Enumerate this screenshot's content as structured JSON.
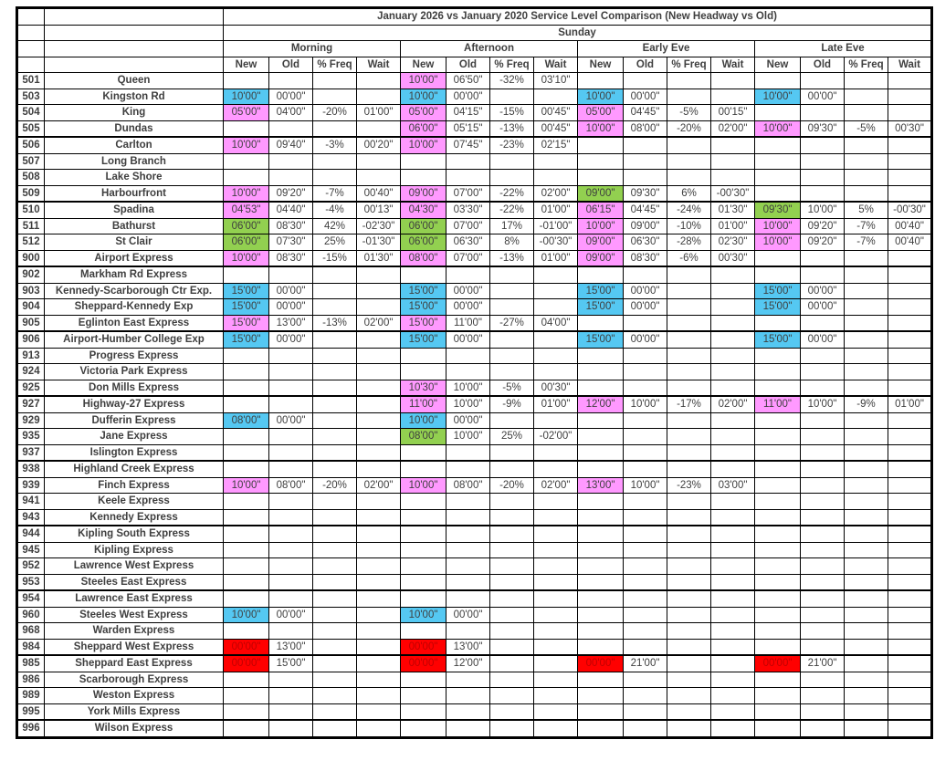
{
  "table": {
    "title": "January 2026 vs January 2020 Service Level Comparison (New Headway vs Old)",
    "day": "Sunday",
    "periods": [
      "Morning",
      "Afternoon",
      "Early Eve",
      "Late Eve"
    ],
    "measure_columns": [
      "New",
      "Old",
      "% Freq",
      "Wait"
    ],
    "highlight_colors": {
      "p": "#FF99FF",
      "c": "#55C8F2",
      "g": "#92D050",
      "r": "#FF0000",
      "r_text": "#C00000"
    },
    "rows": [
      {
        "num": "501",
        "name": "Queen",
        "cells": [
          "",
          "",
          "",
          "",
          "10'00\"|p",
          "06'50\"",
          "-32%",
          "03'10\"",
          "",
          "",
          "",
          "",
          "",
          "",
          "",
          ""
        ]
      },
      {
        "num": "503",
        "name": "Kingston Rd",
        "cells": [
          "10'00\"|c",
          "00'00\"",
          "",
          "",
          "10'00\"|c",
          "00'00\"",
          "",
          "",
          "10'00\"|c",
          "00'00\"",
          "",
          "",
          "10'00\"|c",
          "00'00\"",
          "",
          ""
        ]
      },
      {
        "num": "504",
        "name": "King",
        "cells": [
          "05'00\"|p",
          "04'00\"",
          "-20%",
          "01'00\"",
          "05'00\"|p",
          "04'15\"",
          "-15%",
          "00'45\"",
          "05'00\"|p",
          "04'45\"",
          "-5%",
          "00'15\"",
          "",
          "",
          "",
          ""
        ]
      },
      {
        "num": "505",
        "name": "Dundas",
        "cells": [
          "",
          "",
          "",
          "",
          "06'00\"|p",
          "05'15\"",
          "-13%",
          "00'45\"",
          "10'00\"|p",
          "08'00\"",
          "-20%",
          "02'00\"",
          "10'00\"|p",
          "09'30\"",
          "-5%",
          "00'30\""
        ]
      },
      {
        "num": "506",
        "name": "Carlton",
        "cells": [
          "10'00\"|p",
          "09'40\"",
          "-3%",
          "00'20\"",
          "10'00\"|p",
          "07'45\"",
          "-23%",
          "02'15\"",
          "",
          "",
          "",
          "",
          "",
          "",
          "",
          ""
        ]
      },
      {
        "num": "507",
        "name": "Long Branch",
        "cells": [
          "",
          "",
          "",
          "",
          "",
          "",
          "",
          "",
          "",
          "",
          "",
          "",
          "",
          "",
          "",
          ""
        ]
      },
      {
        "num": "508",
        "name": "Lake Shore",
        "cells": [
          "",
          "",
          "",
          "",
          "",
          "",
          "",
          "",
          "",
          "",
          "",
          "",
          "",
          "",
          "",
          ""
        ]
      },
      {
        "num": "509",
        "name": "Harbourfront",
        "cells": [
          "10'00\"|p",
          "09'20\"",
          "-7%",
          "00'40\"",
          "09'00\"|p",
          "07'00\"",
          "-22%",
          "02'00\"",
          "09'00\"|g",
          "09'30\"",
          "6%",
          "-00'30\"",
          "",
          "",
          "",
          ""
        ]
      },
      {
        "num": "510",
        "name": "Spadina",
        "cells": [
          "04'53\"|p",
          "04'40\"",
          "-4%",
          "00'13\"",
          "04'30\"|p",
          "03'30\"",
          "-22%",
          "01'00\"",
          "06'15\"|p",
          "04'45\"",
          "-24%",
          "01'30\"",
          "09'30\"|g",
          "10'00\"",
          "5%",
          "-00'30\""
        ]
      },
      {
        "num": "511",
        "name": "Bathurst",
        "cells": [
          "06'00\"|g",
          "08'30\"",
          "42%",
          "-02'30\"",
          "06'00\"|g",
          "07'00\"",
          "17%",
          "-01'00\"",
          "10'00\"|p",
          "09'00\"",
          "-10%",
          "01'00\"",
          "10'00\"|p",
          "09'20\"",
          "-7%",
          "00'40\""
        ]
      },
      {
        "num": "512",
        "name": "St Clair",
        "cells": [
          "06'00\"|g",
          "07'30\"",
          "25%",
          "-01'30\"",
          "06'00\"|g",
          "06'30\"",
          "8%",
          "-00'30\"",
          "09'00\"|p",
          "06'30\"",
          "-28%",
          "02'30\"",
          "10'00\"|p",
          "09'20\"",
          "-7%",
          "00'40\""
        ]
      },
      {
        "num": "900",
        "name": "Airport Express",
        "cells": [
          "10'00\"|p",
          "08'30\"",
          "-15%",
          "01'30\"",
          "08'00\"|p",
          "07'00\"",
          "-13%",
          "01'00\"",
          "09'00\"|p",
          "08'30\"",
          "-6%",
          "00'30\"",
          "",
          "",
          "",
          ""
        ]
      },
      {
        "num": "902",
        "name": "Markham Rd Express",
        "cells": [
          "",
          "",
          "",
          "",
          "",
          "",
          "",
          "",
          "",
          "",
          "",
          "",
          "",
          "",
          "",
          ""
        ]
      },
      {
        "num": "903",
        "name": "Kennedy-Scarborough Ctr Exp.",
        "cells": [
          "15'00\"|c",
          "00'00\"",
          "",
          "",
          "15'00\"|c",
          "00'00\"",
          "",
          "",
          "15'00\"|c",
          "00'00\"",
          "",
          "",
          "15'00\"|c",
          "00'00\"",
          "",
          ""
        ]
      },
      {
        "num": "904",
        "name": "Sheppard-Kennedy Exp",
        "cells": [
          "15'00\"|c",
          "00'00\"",
          "",
          "",
          "15'00\"|c",
          "00'00\"",
          "",
          "",
          "15'00\"|c",
          "00'00\"",
          "",
          "",
          "15'00\"|c",
          "00'00\"",
          "",
          ""
        ]
      },
      {
        "num": "905",
        "name": "Eglinton East Express",
        "cells": [
          "15'00\"|p",
          "13'00\"",
          "-13%",
          "02'00\"",
          "15'00\"|p",
          "11'00\"",
          "-27%",
          "04'00\"",
          "",
          "",
          "",
          "",
          "",
          "",
          "",
          ""
        ]
      },
      {
        "num": "906",
        "name": "Airport-Humber College Exp",
        "cells": [
          "15'00\"|c",
          "00'00\"",
          "",
          "",
          "15'00\"|c",
          "00'00\"",
          "",
          "",
          "15'00\"|c",
          "00'00\"",
          "",
          "",
          "15'00\"|c",
          "00'00\"",
          "",
          ""
        ]
      },
      {
        "num": "913",
        "name": "Progress Express",
        "cells": [
          "",
          "",
          "",
          "",
          "",
          "",
          "",
          "",
          "",
          "",
          "",
          "",
          "",
          "",
          "",
          ""
        ]
      },
      {
        "num": "924",
        "name": "Victoria Park Express",
        "cells": [
          "",
          "",
          "",
          "",
          "",
          "",
          "",
          "",
          "",
          "",
          "",
          "",
          "",
          "",
          "",
          ""
        ]
      },
      {
        "num": "925",
        "name": "Don Mills Express",
        "cells": [
          "",
          "",
          "",
          "",
          "10'30\"|p",
          "10'00\"",
          "-5%",
          "00'30\"",
          "",
          "",
          "",
          "",
          "",
          "",
          "",
          ""
        ]
      },
      {
        "num": "927",
        "name": "Highway-27 Express",
        "cells": [
          "",
          "",
          "",
          "",
          "11'00\"|p",
          "10'00\"",
          "-9%",
          "01'00\"",
          "12'00\"|p",
          "10'00\"",
          "-17%",
          "02'00\"",
          "11'00\"|p",
          "10'00\"",
          "-9%",
          "01'00\""
        ]
      },
      {
        "num": "929",
        "name": "Dufferin Express",
        "cells": [
          "08'00\"|c",
          "00'00\"",
          "",
          "",
          "10'00\"|c",
          "00'00\"",
          "",
          "",
          "",
          "",
          "",
          "",
          "",
          "",
          "",
          ""
        ]
      },
      {
        "num": "935",
        "name": "Jane Express",
        "cells": [
          "",
          "",
          "",
          "",
          "08'00\"|g",
          "10'00\"",
          "25%",
          "-02'00\"",
          "",
          "",
          "",
          "",
          "",
          "",
          "",
          ""
        ]
      },
      {
        "num": "937",
        "name": "Islington Express",
        "cells": [
          "",
          "",
          "",
          "",
          "",
          "",
          "",
          "",
          "",
          "",
          "",
          "",
          "",
          "",
          "",
          ""
        ]
      },
      {
        "num": "938",
        "name": "Highland Creek Express",
        "cells": [
          "",
          "",
          "",
          "",
          "",
          "",
          "",
          "",
          "",
          "",
          "",
          "",
          "",
          "",
          "",
          ""
        ]
      },
      {
        "num": "939",
        "name": "Finch Express",
        "cells": [
          "10'00\"|p",
          "08'00\"",
          "-20%",
          "02'00\"",
          "10'00\"|p",
          "08'00\"",
          "-20%",
          "02'00\"",
          "13'00\"|p",
          "10'00\"",
          "-23%",
          "03'00\"",
          "",
          "",
          "",
          ""
        ]
      },
      {
        "num": "941",
        "name": "Keele Express",
        "cells": [
          "",
          "",
          "",
          "",
          "",
          "",
          "",
          "",
          "",
          "",
          "",
          "",
          "",
          "",
          "",
          ""
        ]
      },
      {
        "num": "943",
        "name": "Kennedy Express",
        "cells": [
          "",
          "",
          "",
          "",
          "",
          "",
          "",
          "",
          "",
          "",
          "",
          "",
          "",
          "",
          "",
          ""
        ]
      },
      {
        "num": "944",
        "name": "Kipling South Express",
        "cells": [
          "",
          "",
          "",
          "",
          "",
          "",
          "",
          "",
          "",
          "",
          "",
          "",
          "",
          "",
          "",
          ""
        ]
      },
      {
        "num": "945",
        "name": "Kipling Express",
        "cells": [
          "",
          "",
          "",
          "",
          "",
          "",
          "",
          "",
          "",
          "",
          "",
          "",
          "",
          "",
          "",
          ""
        ]
      },
      {
        "num": "952",
        "name": "Lawrence West Express",
        "cells": [
          "",
          "",
          "",
          "",
          "",
          "",
          "",
          "",
          "",
          "",
          "",
          "",
          "",
          "",
          "",
          ""
        ]
      },
      {
        "num": "953",
        "name": "Steeles East Express",
        "cells": [
          "",
          "",
          "",
          "",
          "",
          "",
          "",
          "",
          "",
          "",
          "",
          "",
          "",
          "",
          "",
          ""
        ]
      },
      {
        "num": "954",
        "name": "Lawrence East Express",
        "cells": [
          "",
          "",
          "",
          "",
          "",
          "",
          "",
          "",
          "",
          "",
          "",
          "",
          "",
          "",
          "",
          ""
        ]
      },
      {
        "num": "960",
        "name": "Steeles West Express",
        "cells": [
          "10'00\"|c",
          "00'00\"",
          "",
          "",
          "10'00\"|c",
          "00'00\"",
          "",
          "",
          "",
          "",
          "",
          "",
          "",
          "",
          "",
          ""
        ]
      },
      {
        "num": "968",
        "name": "Warden Express",
        "cells": [
          "",
          "",
          "",
          "",
          "",
          "",
          "",
          "",
          "",
          "",
          "",
          "",
          "",
          "",
          "",
          ""
        ]
      },
      {
        "num": "984",
        "name": "Sheppard West Express",
        "cells": [
          "00'00\"|r",
          "13'00\"",
          "",
          "",
          "00'00\"|r",
          "13'00\"",
          "",
          "",
          "",
          "",
          "",
          "",
          "",
          "",
          "",
          ""
        ]
      },
      {
        "num": "985",
        "name": "Sheppard East Express",
        "cells": [
          "00'00\"|r",
          "15'00\"",
          "",
          "",
          "00'00\"|r",
          "12'00\"",
          "",
          "",
          "00'00\"|r",
          "21'00\"",
          "",
          "",
          "00'00\"|r",
          "21'00\"",
          "",
          ""
        ]
      },
      {
        "num": "986",
        "name": "Scarborough Express",
        "cells": [
          "",
          "",
          "",
          "",
          "",
          "",
          "",
          "",
          "",
          "",
          "",
          "",
          "",
          "",
          "",
          ""
        ]
      },
      {
        "num": "989",
        "name": "Weston Express",
        "cells": [
          "",
          "",
          "",
          "",
          "",
          "",
          "",
          "",
          "",
          "",
          "",
          "",
          "",
          "",
          "",
          ""
        ]
      },
      {
        "num": "995",
        "name": "York Mills Express",
        "cells": [
          "",
          "",
          "",
          "",
          "",
          "",
          "",
          "",
          "",
          "",
          "",
          "",
          "",
          "",
          "",
          ""
        ]
      },
      {
        "num": "996",
        "name": "Wilson Express",
        "cells": [
          "",
          "",
          "",
          "",
          "",
          "",
          "",
          "",
          "",
          "",
          "",
          "",
          "",
          "",
          "",
          ""
        ]
      }
    ]
  }
}
